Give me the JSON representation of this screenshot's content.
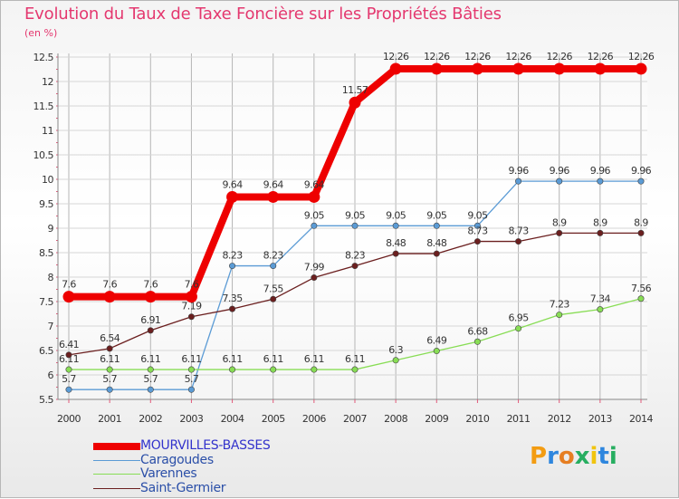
{
  "chart_data": {
    "type": "line",
    "title": "Evolution du Taux de Taxe Foncière sur les Propriétés Bâties",
    "ylabel": "(en %)",
    "xlabel": "",
    "ylim": [
      5.5,
      12.5
    ],
    "yticks": [
      5.5,
      6,
      6.5,
      7,
      7.5,
      8,
      8.5,
      9,
      9.5,
      10,
      10.5,
      11,
      11.5,
      12,
      12.5
    ],
    "categories": [
      "2000",
      "2001",
      "2002",
      "2003",
      "2004",
      "2005",
      "2006",
      "2007",
      "2008",
      "2009",
      "2010",
      "2011",
      "2012",
      "2013",
      "2014"
    ],
    "series": [
      {
        "name": "MOURVILLES-BASSES",
        "color": "#ee0000",
        "values": [
          7.6,
          7.6,
          7.6,
          7.6,
          9.64,
          9.64,
          9.64,
          11.57,
          12.26,
          12.26,
          12.26,
          12.26,
          12.26,
          12.26,
          12.26
        ]
      },
      {
        "name": "Caragoudes",
        "color": "#5b9bd5",
        "values": [
          5.7,
          5.7,
          5.7,
          5.7,
          8.23,
          8.23,
          9.05,
          9.05,
          9.05,
          9.05,
          9.05,
          9.96,
          9.96,
          9.96,
          9.96
        ]
      },
      {
        "name": "Varennes",
        "color": "#88dd55",
        "values": [
          6.11,
          6.11,
          6.11,
          6.11,
          6.11,
          6.11,
          6.11,
          6.11,
          6.3,
          6.49,
          6.68,
          6.95,
          7.23,
          7.34,
          7.56
        ]
      },
      {
        "name": "Saint-Germier",
        "color": "#6b1f1f",
        "values": [
          6.41,
          6.54,
          6.91,
          7.19,
          7.35,
          7.55,
          7.99,
          8.23,
          8.48,
          8.48,
          8.73,
          8.73,
          8.9,
          8.9,
          8.9
        ]
      }
    ],
    "legend_position": "bottom-left"
  },
  "logo": {
    "letters": [
      "P",
      "r",
      "o",
      "x",
      "i",
      "t",
      "i"
    ],
    "colors": [
      "#f39c12",
      "#2e86de",
      "#e67e22",
      "#27ae60",
      "#f1c40f",
      "#2e86de",
      "#27ae60"
    ]
  }
}
